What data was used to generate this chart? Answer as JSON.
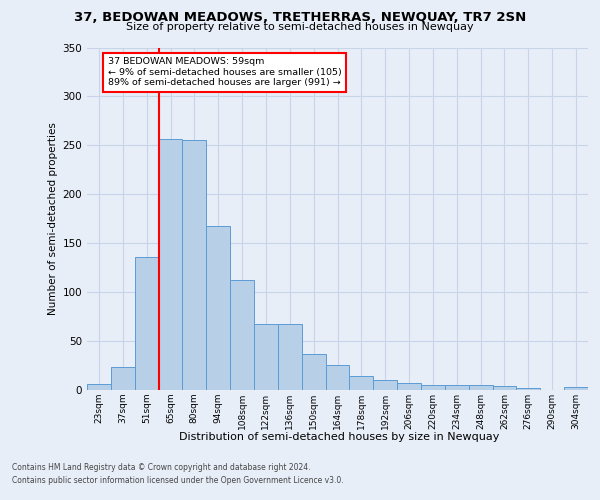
{
  "title": "37, BEDOWAN MEADOWS, TRETHERRAS, NEWQUAY, TR7 2SN",
  "subtitle": "Size of property relative to semi-detached houses in Newquay",
  "dist_label": "Distribution of semi-detached houses by size in Newquay",
  "ylabel": "Number of semi-detached properties",
  "categories": [
    "23sqm",
    "37sqm",
    "51sqm",
    "65sqm",
    "80sqm",
    "94sqm",
    "108sqm",
    "122sqm",
    "136sqm",
    "150sqm",
    "164sqm",
    "178sqm",
    "192sqm",
    "206sqm",
    "220sqm",
    "234sqm",
    "248sqm",
    "262sqm",
    "276sqm",
    "290sqm",
    "304sqm"
  ],
  "values": [
    6,
    24,
    136,
    257,
    255,
    168,
    112,
    67,
    67,
    37,
    26,
    14,
    10,
    7,
    5,
    5,
    5,
    4,
    2,
    0,
    3
  ],
  "bar_color": "#b8cfe8",
  "bar_edge_color": "#5b9bd5",
  "annotation_line1": "37 BEDOWAN MEADOWS: 59sqm",
  "annotation_line2": "← 9% of semi-detached houses are smaller (105)",
  "annotation_line3": "89% of semi-detached houses are larger (991) →",
  "annotation_box_color": "white",
  "annotation_box_edge_color": "red",
  "vline_color": "red",
  "vline_pos": 2.5,
  "grid_color": "#c8d4e8",
  "background_color": "#e8eef8",
  "ylim": [
    0,
    350
  ],
  "yticks": [
    0,
    50,
    100,
    150,
    200,
    250,
    300,
    350
  ],
  "footer1": "Contains HM Land Registry data © Crown copyright and database right 2024.",
  "footer2": "Contains public sector information licensed under the Open Government Licence v3.0."
}
